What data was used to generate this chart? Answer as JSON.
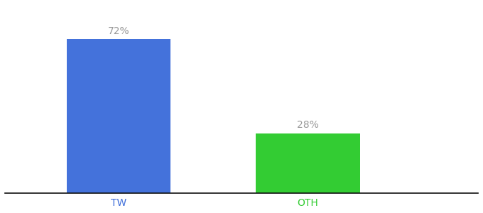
{
  "categories": [
    "TW",
    "OTH"
  ],
  "values": [
    72,
    28
  ],
  "bar_colors": [
    "#4472db",
    "#33cc33"
  ],
  "label_texts": [
    "72%",
    "28%"
  ],
  "label_color": "#999999",
  "label_fontsize": 10,
  "tick_fontsize": 10,
  "tick_color_tw": "#4472db",
  "tick_color_oth": "#33cc33",
  "background_color": "#ffffff",
  "ylim": [
    0,
    88
  ],
  "bar_width": 0.55,
  "x_positions": [
    1,
    2
  ],
  "xlim": [
    0.4,
    2.9
  ],
  "figsize": [
    6.8,
    3.0
  ],
  "dpi": 100
}
